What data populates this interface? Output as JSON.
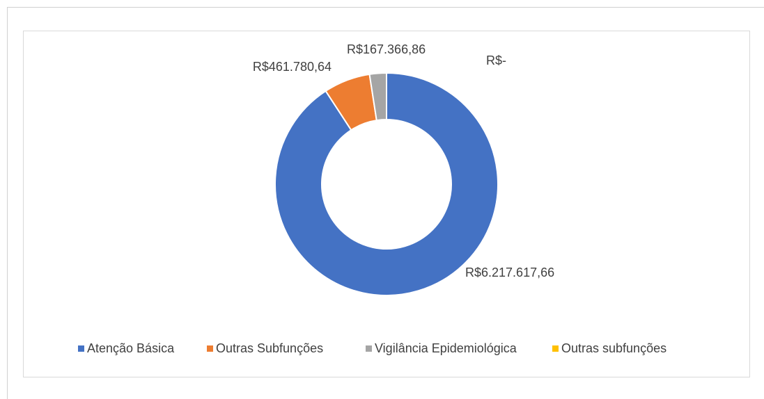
{
  "chart_data": {
    "type": "pie",
    "categories": [
      "Atenção Básica",
      "Outras Subfunções",
      "Vigilância Epidemiológica",
      "Outras subfunções"
    ],
    "values": [
      6217617.66,
      461780.64,
      167366.86,
      0
    ],
    "value_labels": [
      "R$6.217.617,66",
      "R$461.780,64",
      "R$167.366,86",
      "R$-"
    ],
    "colors": [
      "#4472c4",
      "#ed7d31",
      "#a5a5a5",
      "#ffc000"
    ],
    "donut": true,
    "legend": "bottom"
  }
}
